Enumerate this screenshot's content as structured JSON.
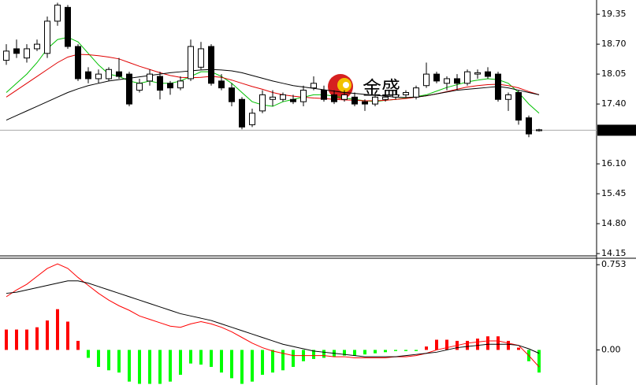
{
  "chart_data": [
    {
      "type": "candlestick",
      "up_color": "#ffffff",
      "down_color": "#000000",
      "ylim": [
        14.1,
        19.66
      ],
      "yticks": [
        19.35,
        {
          "value": 18.7,
          "label": "18.70"
        },
        18.05,
        {
          "value": 17.4,
          "label": "17.40"
        },
        {
          "value": 16.1,
          "label": "16.10"
        },
        15.45,
        {
          "value": 14.8,
          "label": "14.80"
        },
        14.15
      ],
      "last_price": 16.83,
      "watermark": "金盛",
      "open": [
        18.35,
        18.6,
        18.4,
        18.6,
        18.5,
        19.2,
        19.5,
        18.65,
        18.1,
        17.95,
        17.95,
        18.1,
        18.05,
        17.7,
        17.9,
        18.0,
        17.85,
        17.75,
        17.95,
        18.2,
        18.65,
        17.9,
        17.75,
        17.5,
        16.95,
        17.25,
        17.5,
        17.5,
        17.5,
        17.45,
        17.75,
        17.7,
        17.6,
        17.5,
        17.55,
        17.45,
        17.4,
        17.5,
        17.55,
        17.6,
        17.55,
        17.8,
        18.05,
        17.85,
        17.95,
        17.85,
        18.05,
        18.1,
        18.05,
        17.5,
        17.65,
        17.1,
        16.82
      ],
      "high": [
        18.7,
        18.8,
        18.7,
        18.8,
        19.3,
        19.6,
        19.55,
        18.7,
        18.2,
        18.15,
        18.2,
        18.4,
        18.1,
        17.95,
        18.15,
        18.1,
        17.9,
        18.0,
        18.8,
        18.75,
        18.7,
        18.05,
        17.85,
        17.55,
        17.3,
        17.7,
        17.7,
        17.65,
        17.6,
        17.8,
        18.0,
        17.8,
        17.7,
        17.7,
        17.65,
        17.5,
        17.65,
        17.6,
        17.7,
        17.7,
        17.8,
        18.3,
        18.1,
        18.0,
        18.05,
        18.15,
        18.15,
        18.2,
        18.1,
        17.65,
        17.7,
        17.15,
        16.86
      ],
      "low": [
        18.25,
        18.4,
        18.3,
        18.55,
        18.4,
        19.1,
        18.6,
        17.9,
        17.85,
        17.85,
        17.9,
        17.95,
        17.35,
        17.65,
        17.8,
        17.5,
        17.6,
        17.7,
        17.9,
        18.15,
        17.8,
        17.7,
        17.35,
        16.85,
        16.9,
        17.2,
        17.35,
        17.45,
        17.4,
        17.35,
        17.7,
        17.45,
        17.4,
        17.45,
        17.35,
        17.25,
        17.35,
        17.45,
        17.5,
        17.55,
        17.5,
        17.75,
        17.85,
        17.7,
        17.7,
        17.8,
        17.95,
        17.95,
        17.45,
        17.25,
        16.95,
        16.68,
        16.8
      ],
      "close": [
        18.55,
        18.5,
        18.6,
        18.7,
        19.2,
        19.55,
        18.65,
        17.95,
        17.95,
        18.05,
        18.15,
        18.0,
        17.4,
        17.85,
        18.05,
        17.7,
        17.75,
        17.9,
        18.65,
        18.6,
        17.85,
        17.75,
        17.45,
        16.9,
        17.2,
        17.6,
        17.55,
        17.6,
        17.45,
        17.7,
        17.85,
        17.5,
        17.45,
        17.6,
        17.4,
        17.4,
        17.55,
        17.55,
        17.6,
        17.65,
        17.75,
        18.05,
        17.9,
        17.95,
        17.85,
        18.1,
        18.08,
        18.0,
        17.5,
        17.6,
        17.05,
        16.75,
        16.84
      ],
      "lines": [
        {
          "color": "#00c000",
          "values": [
            17.65,
            17.85,
            18.05,
            18.3,
            18.6,
            18.8,
            18.85,
            18.75,
            18.5,
            18.25,
            18.05,
            18.0,
            17.9,
            17.85,
            17.9,
            17.85,
            17.85,
            17.9,
            18.0,
            18.1,
            18.1,
            18.0,
            17.85,
            17.65,
            17.45,
            17.38,
            17.35,
            17.45,
            17.5,
            17.55,
            17.6,
            17.6,
            17.57,
            17.53,
            17.5,
            17.47,
            17.45,
            17.48,
            17.5,
            17.53,
            17.56,
            17.6,
            17.68,
            17.76,
            17.82,
            17.88,
            17.92,
            17.95,
            17.93,
            17.85,
            17.65,
            17.4,
            17.2
          ]
        },
        {
          "color": "#e00000",
          "values": [
            17.55,
            17.7,
            17.85,
            18.0,
            18.15,
            18.3,
            18.42,
            18.48,
            18.47,
            18.45,
            18.42,
            18.38,
            18.3,
            18.22,
            18.15,
            18.08,
            18.02,
            17.98,
            17.97,
            17.98,
            18.0,
            17.98,
            17.92,
            17.85,
            17.78,
            17.72,
            17.65,
            17.6,
            17.57,
            17.55,
            17.53,
            17.52,
            17.5,
            17.49,
            17.48,
            17.47,
            17.47,
            17.48,
            17.5,
            17.52,
            17.55,
            17.58,
            17.62,
            17.67,
            17.72,
            17.77,
            17.8,
            17.82,
            17.83,
            17.8,
            17.75,
            17.67,
            17.6
          ]
        },
        {
          "color": "#000000",
          "values": [
            17.05,
            17.15,
            17.25,
            17.35,
            17.45,
            17.55,
            17.65,
            17.73,
            17.8,
            17.85,
            17.9,
            17.93,
            17.96,
            17.99,
            18.02,
            18.05,
            18.08,
            18.1,
            18.12,
            18.14,
            18.15,
            18.14,
            18.12,
            18.08,
            18.02,
            17.96,
            17.9,
            17.85,
            17.8,
            17.77,
            17.74,
            17.71,
            17.68,
            17.65,
            17.63,
            17.61,
            17.59,
            17.57,
            17.55,
            17.54,
            17.55,
            17.58,
            17.62,
            17.66,
            17.7,
            17.72,
            17.74,
            17.76,
            17.78,
            17.75,
            17.7,
            17.65,
            17.6
          ]
        }
      ]
    },
    {
      "type": "macd",
      "positive_color": "#ff0000",
      "negative_color": "#00ff00",
      "ylim": [
        -0.31,
        0.81
      ],
      "yticks": [
        0.753,
        {
          "value": 0,
          "label": "0.00"
        }
      ],
      "values": [
        0.18,
        0.18,
        0.18,
        0.2,
        0.26,
        0.36,
        0.25,
        0.08,
        -0.07,
        -0.15,
        -0.18,
        -0.2,
        -0.28,
        -0.3,
        -0.3,
        -0.3,
        -0.28,
        -0.22,
        -0.12,
        -0.13,
        -0.15,
        -0.2,
        -0.25,
        -0.3,
        -0.28,
        -0.22,
        -0.2,
        -0.18,
        -0.15,
        -0.1,
        -0.08,
        -0.07,
        -0.06,
        -0.05,
        -0.05,
        -0.04,
        -0.03,
        -0.02,
        -0.01,
        -0.01,
        -0.01,
        0.03,
        0.09,
        0.09,
        0.08,
        0.08,
        0.1,
        0.12,
        0.12,
        0.08,
        0.02,
        -0.1,
        -0.2
      ],
      "lines": [
        {
          "color": "#ff0000",
          "values": [
            0.47,
            0.53,
            0.58,
            0.65,
            0.72,
            0.76,
            0.72,
            0.64,
            0.57,
            0.5,
            0.44,
            0.39,
            0.35,
            0.3,
            0.27,
            0.24,
            0.21,
            0.2,
            0.23,
            0.25,
            0.23,
            0.2,
            0.16,
            0.11,
            0.06,
            0.02,
            -0.01,
            -0.03,
            -0.05,
            -0.05,
            -0.05,
            -0.05,
            -0.06,
            -0.06,
            -0.07,
            -0.07,
            -0.07,
            -0.07,
            -0.06,
            -0.06,
            -0.05,
            -0.03,
            0.0,
            0.02,
            0.04,
            0.06,
            0.07,
            0.08,
            0.08,
            0.06,
            0.04,
            -0.05,
            -0.15
          ]
        },
        {
          "color": "#000000",
          "values": [
            0.5,
            0.51,
            0.53,
            0.55,
            0.57,
            0.59,
            0.61,
            0.61,
            0.59,
            0.56,
            0.53,
            0.5,
            0.47,
            0.44,
            0.41,
            0.38,
            0.35,
            0.32,
            0.3,
            0.28,
            0.26,
            0.23,
            0.2,
            0.17,
            0.14,
            0.11,
            0.08,
            0.05,
            0.03,
            0.01,
            -0.01,
            -0.02,
            -0.03,
            -0.04,
            -0.05,
            -0.06,
            -0.06,
            -0.06,
            -0.06,
            -0.05,
            -0.04,
            -0.03,
            -0.02,
            0.0,
            0.02,
            0.03,
            0.04,
            0.05,
            0.05,
            0.05,
            0.04,
            0.01,
            -0.03
          ]
        }
      ]
    }
  ]
}
